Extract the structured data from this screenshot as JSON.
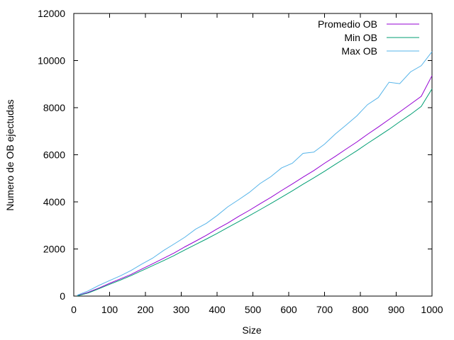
{
  "chart_data": {
    "type": "line",
    "title": "",
    "xlabel": "Size",
    "ylabel": "Numero de OB ejectudas",
    "xlim": [
      0,
      1000
    ],
    "ylim": [
      0,
      12000
    ],
    "x_ticks": [
      "0",
      "100",
      "200",
      "300",
      "400",
      "500",
      "600",
      "700",
      "800",
      "900",
      "1000"
    ],
    "y_ticks": [
      "0",
      "2000",
      "4000",
      "6000",
      "8000",
      "10000",
      "12000"
    ],
    "grid": false,
    "legend_position": "top-right",
    "x": [
      10,
      40,
      70,
      100,
      130,
      160,
      190,
      220,
      250,
      280,
      310,
      340,
      370,
      400,
      430,
      460,
      490,
      520,
      550,
      580,
      610,
      640,
      670,
      700,
      730,
      760,
      790,
      820,
      850,
      880,
      910,
      940,
      970,
      1000
    ],
    "series": [
      {
        "name": "Promedio OB",
        "color": "#9400d3",
        "values": [
          20,
          160,
          340,
          540,
          730,
          920,
          1150,
          1370,
          1600,
          1830,
          2090,
          2330,
          2580,
          2850,
          3100,
          3380,
          3640,
          3920,
          4190,
          4480,
          4760,
          5050,
          5330,
          5640,
          5930,
          6240,
          6540,
          6870,
          7180,
          7500,
          7820,
          8150,
          8480,
          9360
        ]
      },
      {
        "name": "Min OB",
        "color": "#009e73",
        "values": [
          10,
          130,
          310,
          500,
          680,
          870,
          1080,
          1290,
          1500,
          1720,
          1960,
          2190,
          2420,
          2660,
          2910,
          3160,
          3410,
          3670,
          3930,
          4200,
          4470,
          4750,
          5020,
          5300,
          5590,
          5880,
          6170,
          6480,
          6780,
          7080,
          7400,
          7710,
          8050,
          8800
        ]
      },
      {
        "name": "Max OB",
        "color": "#56b4e9",
        "values": [
          40,
          220,
          450,
          660,
          860,
          1090,
          1360,
          1610,
          1930,
          2210,
          2500,
          2840,
          3090,
          3420,
          3790,
          4090,
          4400,
          4780,
          5070,
          5440,
          5640,
          6060,
          6110,
          6450,
          6880,
          7260,
          7650,
          8130,
          8430,
          9080,
          9020,
          9520,
          9780,
          10380
        ]
      }
    ]
  }
}
